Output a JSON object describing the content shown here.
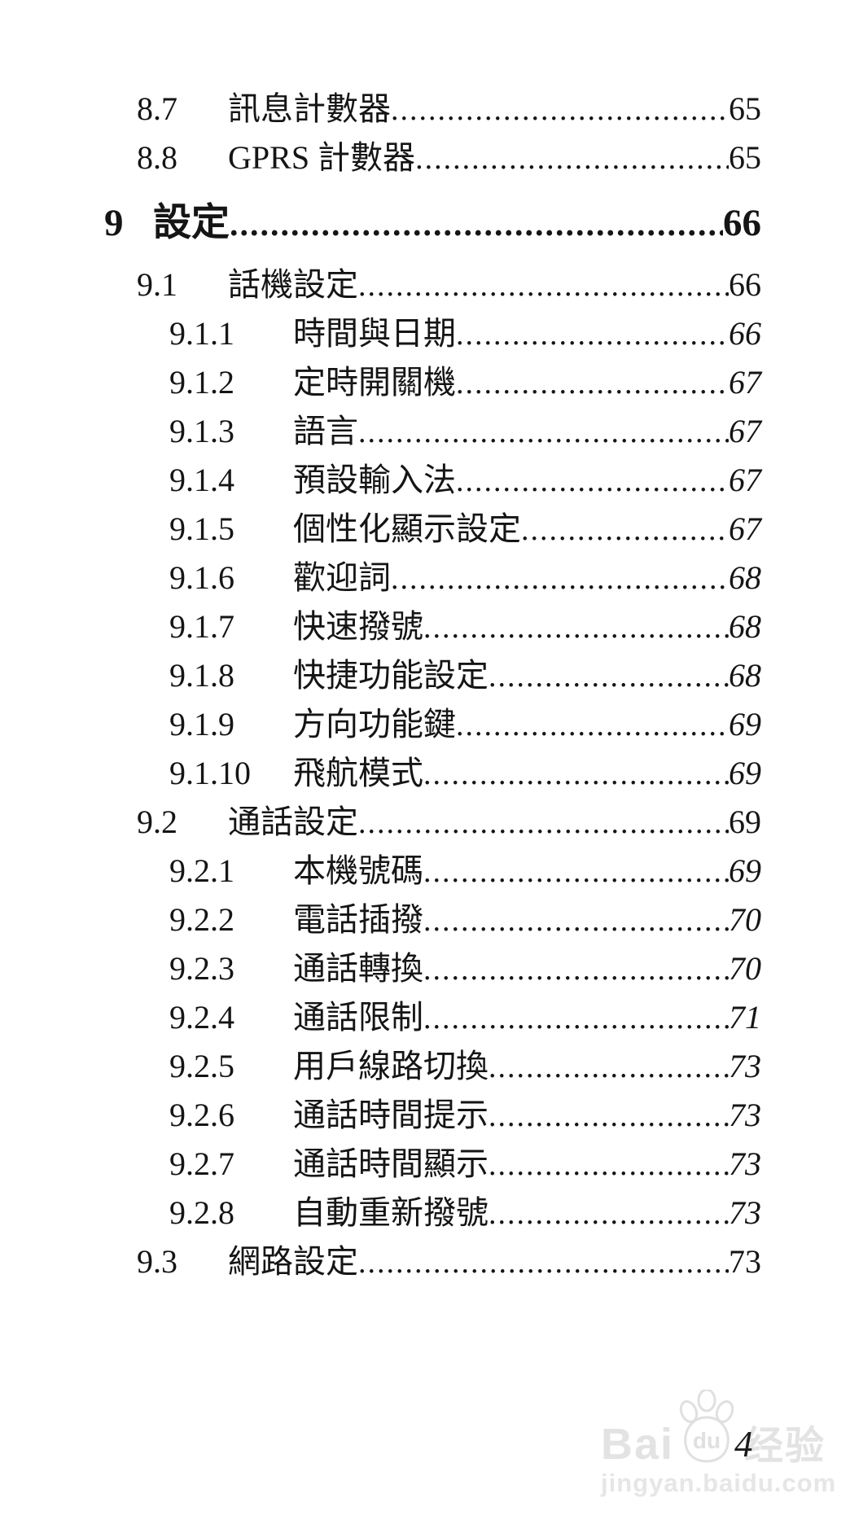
{
  "document": {
    "page_number": "4",
    "toc_entries": [
      {
        "num": "8.7",
        "label": "訊息計數器",
        "page": "65",
        "level": 2
      },
      {
        "num": "8.8",
        "label": "GPRS 計數器",
        "page": "65",
        "level": 2
      },
      {
        "num": "9",
        "label": "設定",
        "page": "66",
        "level": 1
      },
      {
        "num": "9.1",
        "label": "話機設定",
        "page": "66",
        "level": 2
      },
      {
        "num": "9.1.1",
        "label": "時間與日期",
        "page": "66",
        "level": 3
      },
      {
        "num": "9.1.2",
        "label": "定時開關機",
        "page": "67",
        "level": 3
      },
      {
        "num": "9.1.3",
        "label": "語言",
        "page": "67",
        "level": 3
      },
      {
        "num": "9.1.4",
        "label": "預設輸入法",
        "page": "67",
        "level": 3
      },
      {
        "num": "9.1.5",
        "label": "個性化顯示設定",
        "page": "67",
        "level": 3
      },
      {
        "num": "9.1.6",
        "label": "歡迎詞",
        "page": "68",
        "level": 3
      },
      {
        "num": "9.1.7",
        "label": "快速撥號",
        "page": "68",
        "level": 3
      },
      {
        "num": "9.1.8",
        "label": "快捷功能設定",
        "page": "68",
        "level": 3
      },
      {
        "num": "9.1.9",
        "label": "方向功能鍵",
        "page": "69",
        "level": 3
      },
      {
        "num": "9.1.10",
        "label": "飛航模式",
        "page": "69",
        "level": 3
      },
      {
        "num": "9.2",
        "label": "通話設定",
        "page": "69",
        "level": 2
      },
      {
        "num": "9.2.1",
        "label": "本機號碼",
        "page": "69",
        "level": 3
      },
      {
        "num": "9.2.2",
        "label": "電話插撥",
        "page": "70",
        "level": 3
      },
      {
        "num": "9.2.3",
        "label": "通話轉換",
        "page": "70",
        "level": 3
      },
      {
        "num": "9.2.4",
        "label": "通話限制",
        "page": "71",
        "level": 3
      },
      {
        "num": "9.2.5",
        "label": "用戶線路切換",
        "page": "73",
        "level": 3
      },
      {
        "num": "9.2.6",
        "label": "通話時間提示",
        "page": "73",
        "level": 3
      },
      {
        "num": "9.2.7",
        "label": "通話時間顯示",
        "page": "73",
        "level": 3
      },
      {
        "num": "9.2.8",
        "label": "自動重新撥號",
        "page": "73",
        "level": 3
      },
      {
        "num": "9.3",
        "label": "網路設定",
        "page": "73",
        "level": 2
      }
    ]
  },
  "watermark": {
    "brand": "Bai",
    "brand_du": "du",
    "brand_suffix": "经验",
    "url": "jingyan.baidu.com"
  },
  "colors": {
    "text": "#151515",
    "watermark": "#e3e3e3"
  }
}
